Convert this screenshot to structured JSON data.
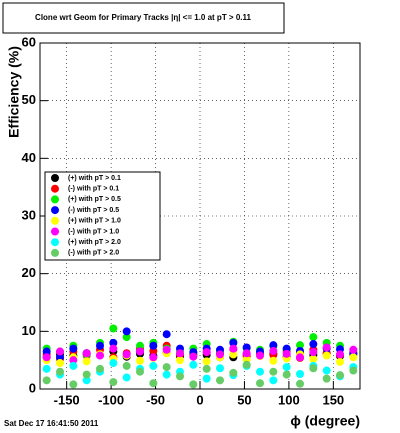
{
  "chart_data": {
    "type": "scatter",
    "title": "Clone wrt Geom for Primary Tracks |η| <= 1.0 at pT > 0.11",
    "xlabel": "ϕ (degree)",
    "ylabel": "Efficiency (%)",
    "footer": "Sat Dec 17 16:41:50 2011",
    "xlim": [
      -180,
      180
    ],
    "xticks": [
      -150,
      -100,
      -50,
      0,
      50,
      100,
      150
    ],
    "ylim": [
      0,
      60
    ],
    "yticks": [
      0,
      10,
      20,
      30,
      40,
      50,
      60
    ],
    "grid": true,
    "x": [
      -172.5,
      -157.5,
      -142.5,
      -127.5,
      -112.5,
      -97.5,
      -82.5,
      -67.5,
      -52.5,
      -37.5,
      -22.5,
      -7.5,
      7.5,
      22.5,
      37.5,
      52.5,
      67.5,
      82.5,
      97.5,
      112.5,
      127.5,
      142.5,
      157.5,
      172.5
    ],
    "series": [
      {
        "name": "(+) with pT > 0.1",
        "color": "#000000",
        "values": [
          5.5,
          6,
          5.8,
          6.2,
          5.9,
          6.5,
          5.6,
          6.1,
          5.8,
          6.3,
          5.7,
          6,
          5.9,
          6.2,
          5.5,
          6,
          5.8,
          6.1,
          5.6,
          6.3,
          5.9,
          6.2,
          5.7,
          6
        ]
      },
      {
        "name": "(-) with pT > 0.1",
        "color": "#ff0000",
        "values": [
          6,
          5.2,
          6.5,
          5.8,
          6.8,
          5.5,
          6.2,
          7,
          6.6,
          7.5,
          6,
          5.8,
          6.4,
          5.5,
          6.9,
          5.7,
          6.1,
          5.9,
          6.6,
          5.4,
          6.8,
          6.2,
          5.9,
          6.4
        ]
      },
      {
        "name": "(+) with pT > 0.5",
        "color": "#00ee00",
        "values": [
          7,
          6.5,
          7.5,
          6,
          8,
          10.5,
          9,
          7.5,
          8,
          7,
          6.5,
          7,
          7.8,
          6.6,
          8.2,
          7,
          6.8,
          7.4,
          6.9,
          7.6,
          9,
          8,
          7.5,
          6.5
        ]
      },
      {
        "name": "(-) with pT > 0.5",
        "color": "#0000ff",
        "values": [
          6.5,
          5.5,
          7,
          6.2,
          7.5,
          8,
          10,
          6.5,
          7.5,
          9.5,
          7,
          6.4,
          7,
          6.8,
          8,
          7.2,
          6.5,
          7.6,
          7,
          6.6,
          7.8,
          7,
          6.9,
          6.2
        ]
      },
      {
        "name": "(+) with pT > 1.0",
        "color": "#ffff00",
        "values": [
          5,
          4.5,
          5.5,
          4.8,
          6,
          5.2,
          5.8,
          4.9,
          5.4,
          6.2,
          5,
          5.6,
          4.8,
          5.5,
          6,
          5.1,
          5.7,
          4.9,
          5.3,
          6,
          5.2,
          5.8,
          4.7,
          5.5
        ]
      },
      {
        "name": "(-) with pT > 1.0",
        "color": "#ff00ff",
        "values": [
          5.5,
          6.5,
          5,
          6.2,
          5.8,
          7,
          6,
          6.5,
          5.5,
          6.8,
          6.2,
          5.6,
          6.4,
          6,
          7,
          6.2,
          5.8,
          6.6,
          6.1,
          5.5,
          6.4,
          7.2,
          6,
          6.8
        ]
      },
      {
        "name": "(+) with pT > 2.0",
        "color": "#00ffff",
        "values": [
          3.5,
          2.5,
          4,
          1.5,
          3,
          4.5,
          2,
          3.5,
          4,
          2.5,
          3,
          4.2,
          1.8,
          3.6,
          2.4,
          4,
          3,
          1.5,
          3.8,
          2.6,
          4,
          3.2,
          2.2,
          3.8
        ]
      },
      {
        "name": "(-) with pT > 2.0",
        "color": "#66cc66",
        "values": [
          1.5,
          3,
          0.8,
          2.5,
          3.5,
          1.2,
          4,
          3,
          1,
          3.8,
          2.2,
          0.8,
          3.5,
          1.5,
          2.8,
          4.2,
          1,
          3,
          2.5,
          0.9,
          3.6,
          1.8,
          2.4,
          3.2
        ]
      }
    ]
  }
}
